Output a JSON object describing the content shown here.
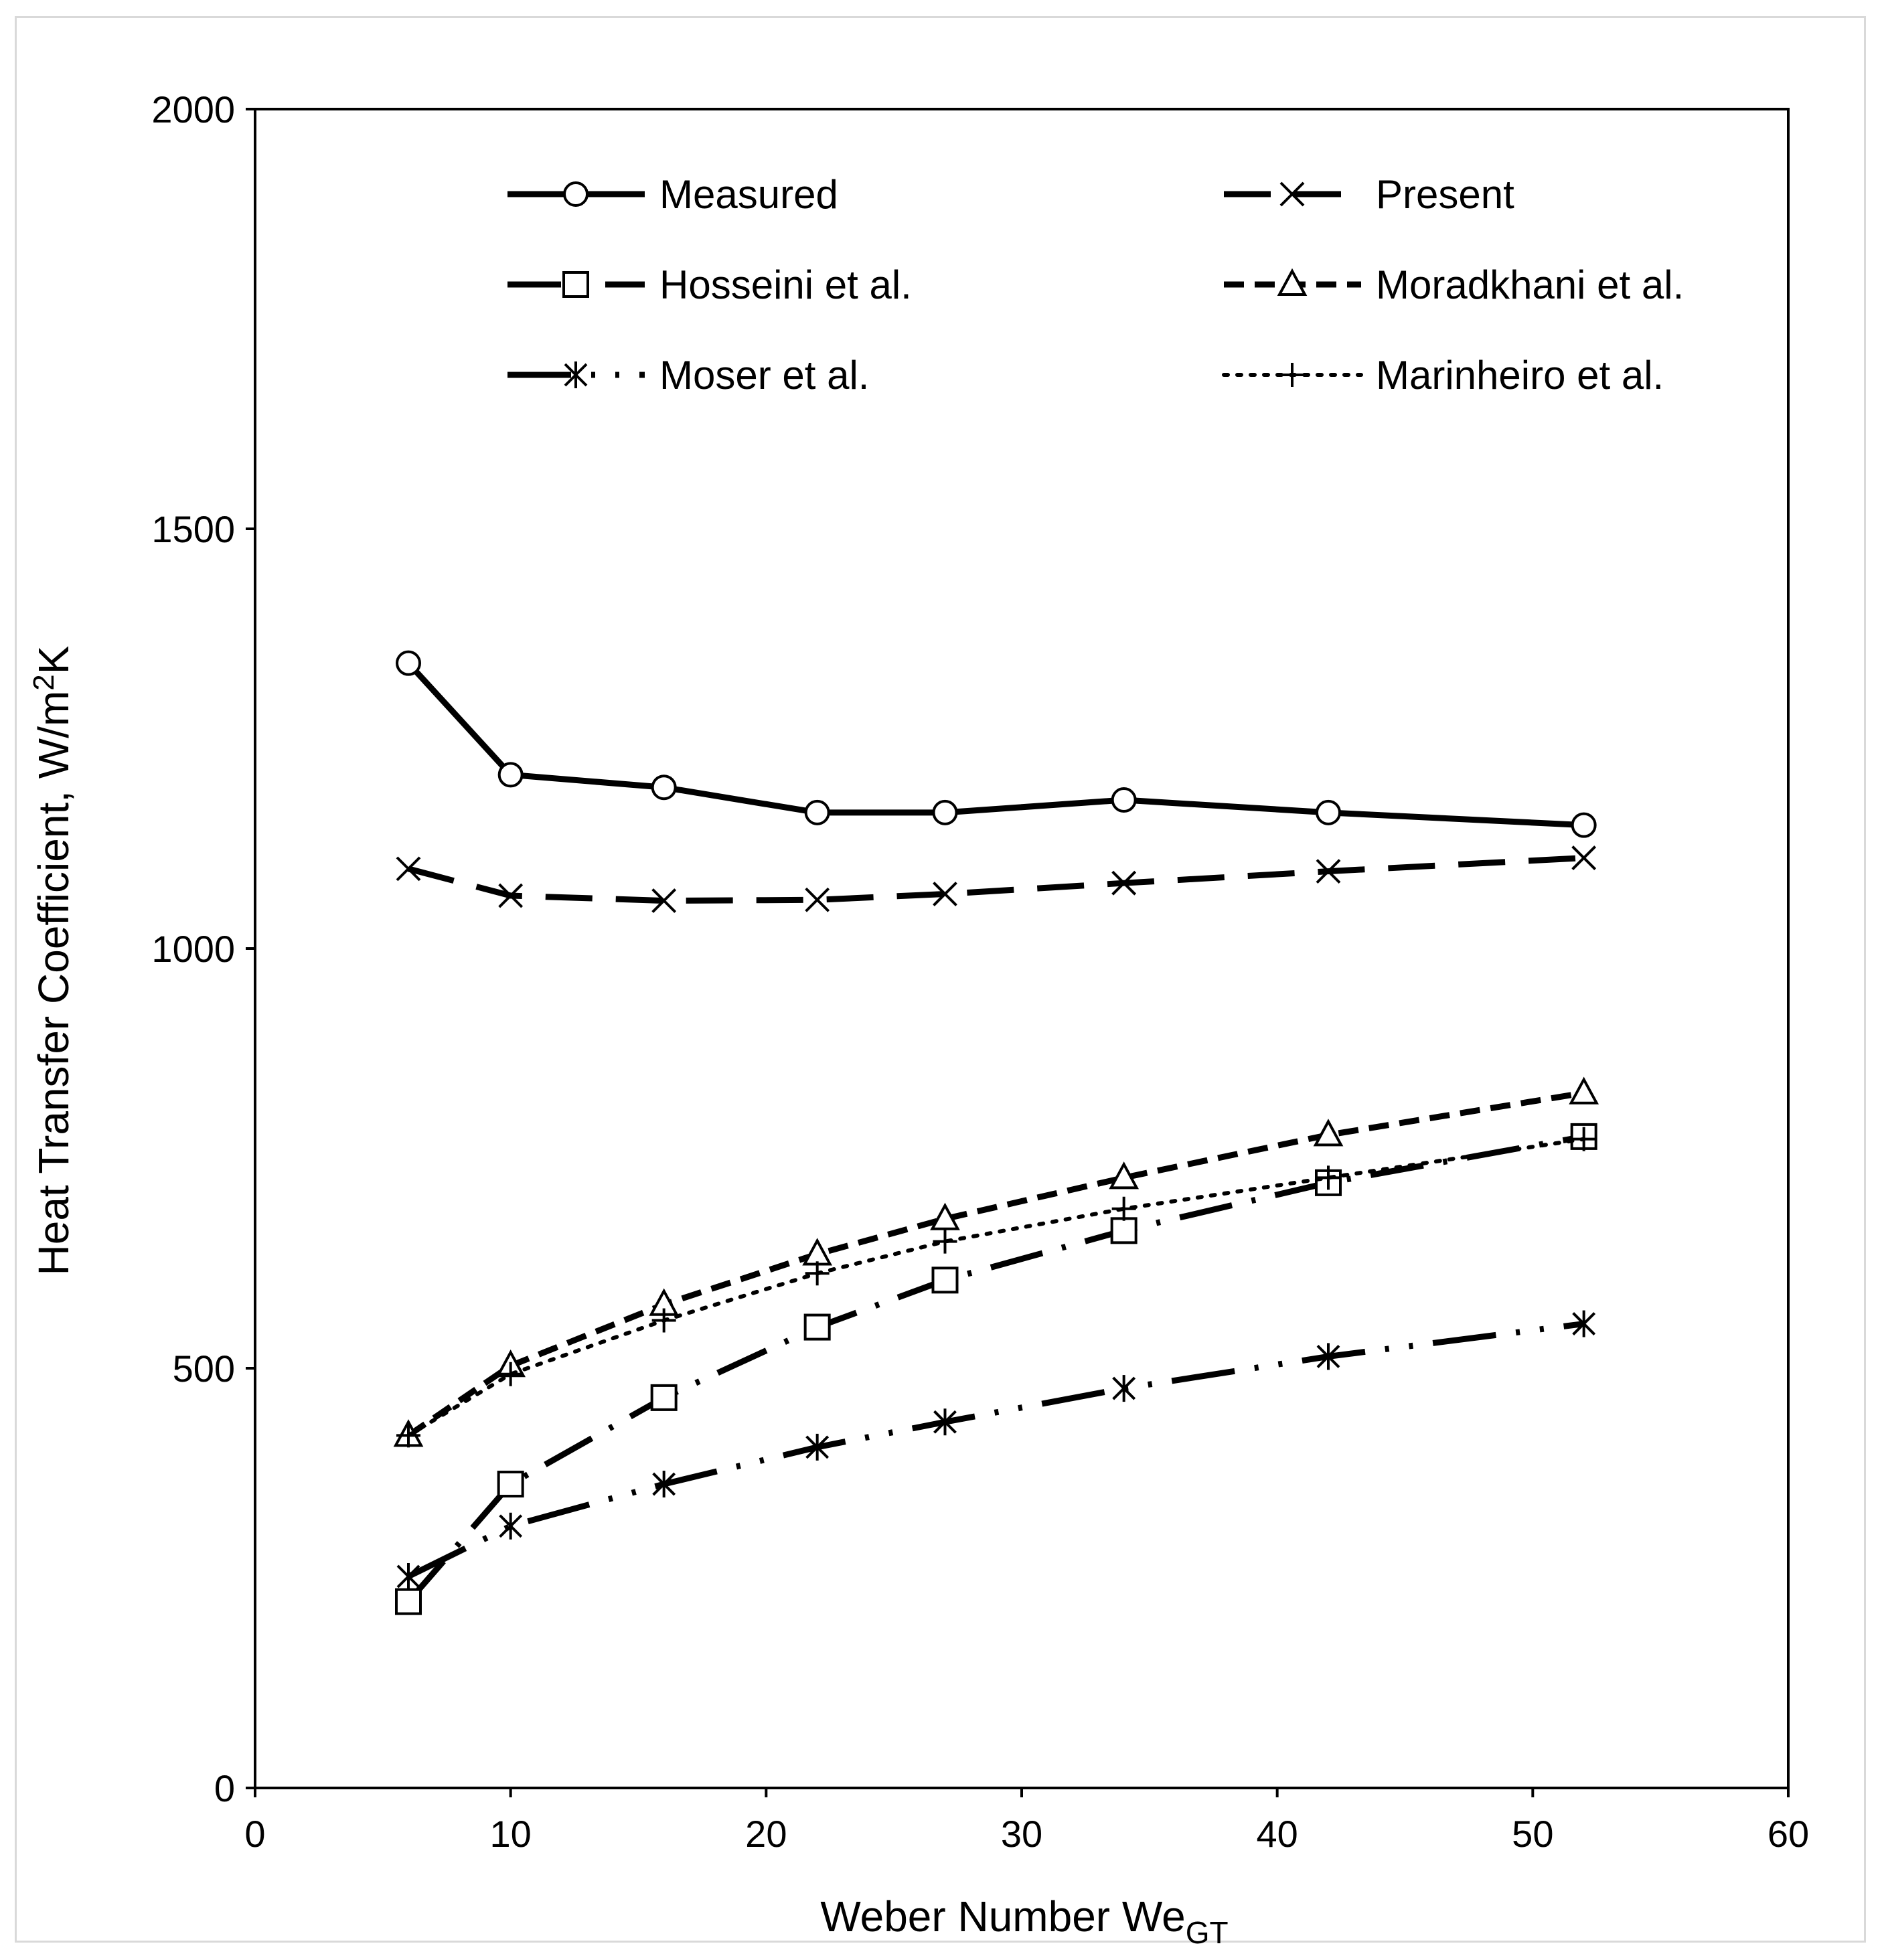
{
  "chart_data": {
    "type": "line",
    "title": "",
    "xlabel": "Weber Number We",
    "xlabel_subscript": "GT",
    "ylabel": "Heat Transfer Coefficient, W/m",
    "ylabel_superscript": "2",
    "ylabel_tail": "K",
    "xlim": [
      0,
      60
    ],
    "ylim": [
      0,
      2000
    ],
    "x_ticks": [
      "0",
      "10",
      "20",
      "30",
      "40",
      "50",
      "60"
    ],
    "y_ticks": [
      "0",
      "500",
      "1000",
      "1500",
      "2000"
    ],
    "grid": false,
    "legend_position": "top",
    "x": [
      6,
      10,
      16,
      22,
      27,
      34,
      42,
      52
    ],
    "series": [
      {
        "name": "Measured",
        "marker": "circle",
        "line": "solid",
        "values": [
          1340,
          1207,
          1192,
          1162,
          1162,
          1177,
          1162,
          1147
        ]
      },
      {
        "name": "Present",
        "marker": "x",
        "line": "dash",
        "values": [
          1095,
          1063,
          1057,
          1058,
          1065,
          1078,
          1092,
          1108
        ]
      },
      {
        "name": "Hosseini et al.",
        "marker": "square",
        "line": "longdash-dot",
        "values": [
          222,
          362,
          465,
          549,
          605,
          664,
          721,
          776
        ]
      },
      {
        "name": "Moradkhani et al.",
        "marker": "triangle",
        "line": "shortdash",
        "values": [
          420,
          503,
          576,
          636,
          678,
          727,
          778,
          828
        ]
      },
      {
        "name": "Moser et al.",
        "marker": "asterisk",
        "line": "longdash-dot-dot",
        "values": [
          252,
          312,
          362,
          406,
          436,
          476,
          514,
          553
        ]
      },
      {
        "name": "Marinheiro et al.",
        "marker": "plus",
        "line": "dot",
        "values": [
          420,
          493,
          557,
          613,
          651,
          690,
          727,
          773
        ]
      }
    ]
  }
}
